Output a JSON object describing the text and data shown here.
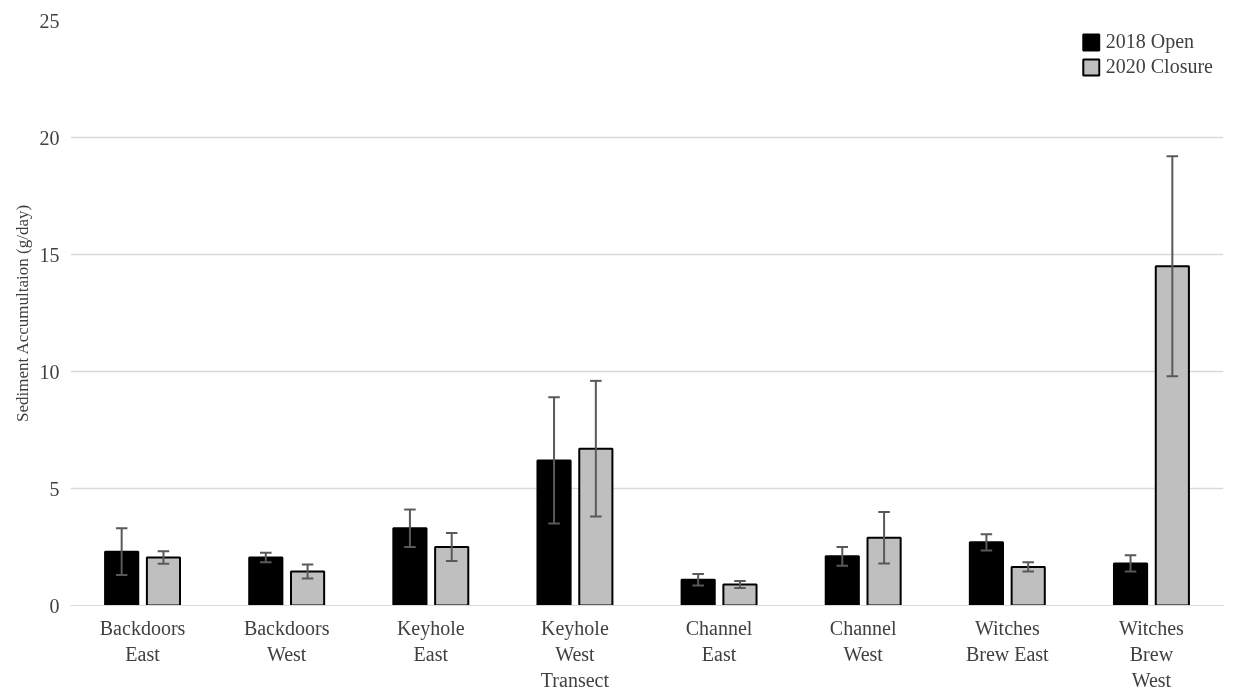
{
  "chart_data": {
    "type": "bar",
    "ylabel": "Sediment Accumultaion (g/day)",
    "categories": [
      "Backdoors\nEast",
      "Backdoors\nWest",
      "Keyhole\nEast",
      "Keyhole\nWest\nTransect",
      "Channel\nEast",
      "Channel\nWest",
      "Witches\nBrew East",
      "Witches\nBrew\nWest"
    ],
    "series": [
      {
        "name": "2018 Open",
        "color": "#000000",
        "values": [
          2.3,
          2.05,
          3.3,
          6.2,
          1.1,
          2.1,
          2.7,
          1.8
        ],
        "errors": [
          1.0,
          0.2,
          0.8,
          2.7,
          0.25,
          0.4,
          0.35,
          0.35
        ]
      },
      {
        "name": "2020 Closure",
        "color": "#bfbfbf",
        "values": [
          2.05,
          1.45,
          2.5,
          6.7,
          0.9,
          2.9,
          1.65,
          14.5
        ],
        "errors": [
          0.27,
          0.3,
          0.6,
          2.9,
          0.15,
          1.1,
          0.2,
          4.7
        ]
      }
    ],
    "ylim": [
      0,
      25
    ],
    "yticks": [
      0,
      5,
      10,
      15,
      20,
      25
    ],
    "grid": "y",
    "legend": "top right"
  }
}
